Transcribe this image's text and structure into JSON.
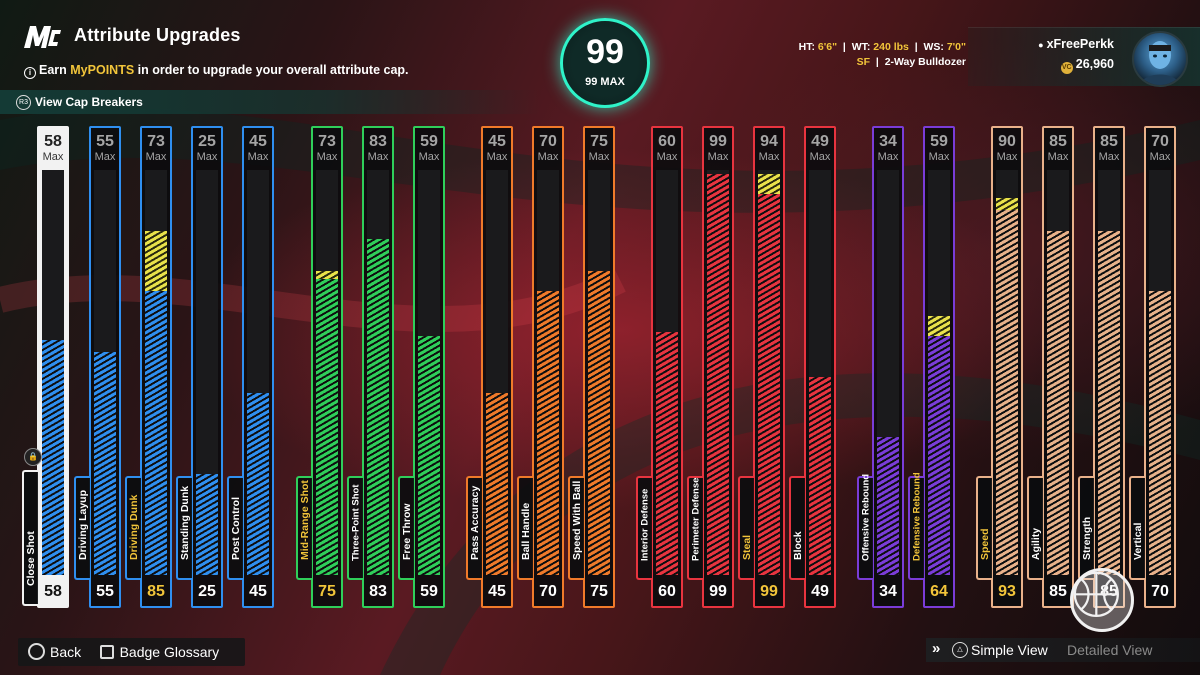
{
  "header": {
    "title": "Attribute Upgrades",
    "earn_prefix": "Earn ",
    "earn_highlight": "MyPOINTS",
    "earn_suffix": " in order to upgrade your overall attribute cap.",
    "cap_breakers_label": "View Cap Breakers"
  },
  "overall": {
    "value": "99",
    "max_label": "99 MAX",
    "ring_color": "#2ff3c9"
  },
  "bio": {
    "ht_label": "HT:",
    "ht_value": "6'6\"",
    "wt_label": "WT:",
    "wt_value": "240 lbs",
    "ws_label": "WS:",
    "ws_value": "7'0\"",
    "position": "SF",
    "archetype": "2-Way Bulldozer"
  },
  "profile": {
    "username": "xFreePerkk",
    "vc": "26,960"
  },
  "colors": {
    "white": "#f2f2f2",
    "blue": "#2f8ff0",
    "green": "#2fcf5a",
    "orange": "#f07a2a",
    "red": "#e8343f",
    "purple": "#7a3cd8",
    "tan": "#e9b18a",
    "boost": "#e9e24a",
    "upgraded_text": "#f2c53a"
  },
  "attributes": [
    {
      "name": "Close Shot",
      "group": "white",
      "max": "58",
      "max_label": "Max",
      "current": "58",
      "current_num": 58,
      "max_num": 58,
      "upgrade_num": 58,
      "upgraded": false
    },
    {
      "name": "Driving Layup",
      "group": "blue",
      "max": "55",
      "max_label": "Max",
      "current": "55",
      "current_num": 55,
      "max_num": 55,
      "upgrade_num": 55,
      "upgraded": false
    },
    {
      "name": "Driving Dunk",
      "group": "blue",
      "max": "73",
      "max_label": "Max",
      "current": "85",
      "current_num": 70,
      "max_num": 73,
      "upgrade_num": 85,
      "upgraded": true
    },
    {
      "name": "Standing Dunk",
      "group": "blue",
      "max": "25",
      "max_label": "Max",
      "current": "25",
      "current_num": 25,
      "max_num": 25,
      "upgrade_num": 25,
      "upgraded": false
    },
    {
      "name": "Post Control",
      "group": "blue",
      "max": "45",
      "max_label": "Max",
      "current": "45",
      "current_num": 45,
      "max_num": 45,
      "upgrade_num": 45,
      "upgraded": false
    },
    {
      "name": "Mid-Range Shot",
      "group": "green",
      "max": "73",
      "max_label": "Max",
      "current": "75",
      "current_num": 73,
      "max_num": 73,
      "upgrade_num": 75,
      "upgraded": true
    },
    {
      "name": "Three-Point Shot",
      "group": "green",
      "max": "83",
      "max_label": "Max",
      "current": "83",
      "current_num": 83,
      "max_num": 83,
      "upgrade_num": 83,
      "upgraded": false
    },
    {
      "name": "Free Throw",
      "group": "green",
      "max": "59",
      "max_label": "Max",
      "current": "59",
      "current_num": 59,
      "max_num": 59,
      "upgrade_num": 59,
      "upgraded": false
    },
    {
      "name": "Pass Accuracy",
      "group": "orange",
      "max": "45",
      "max_label": "Max",
      "current": "45",
      "current_num": 45,
      "max_num": 45,
      "upgrade_num": 45,
      "upgraded": false
    },
    {
      "name": "Ball Handle",
      "group": "orange",
      "max": "70",
      "max_label": "Max",
      "current": "70",
      "current_num": 70,
      "max_num": 70,
      "upgrade_num": 70,
      "upgraded": false
    },
    {
      "name": "Speed With Ball",
      "group": "orange",
      "max": "75",
      "max_label": "Max",
      "current": "75",
      "current_num": 75,
      "max_num": 75,
      "upgrade_num": 75,
      "upgraded": false
    },
    {
      "name": "Interior Defense",
      "group": "red",
      "max": "60",
      "max_label": "Max",
      "current": "60",
      "current_num": 60,
      "max_num": 60,
      "upgrade_num": 60,
      "upgraded": false
    },
    {
      "name": "Perimeter Defense",
      "group": "red",
      "max": "99",
      "max_label": "Max",
      "current": "99",
      "current_num": 99,
      "max_num": 99,
      "upgrade_num": 99,
      "upgraded": false
    },
    {
      "name": "Steal",
      "group": "red",
      "max": "94",
      "max_label": "Max",
      "current": "99",
      "current_num": 94,
      "max_num": 94,
      "upgrade_num": 99,
      "upgraded": true
    },
    {
      "name": "Block",
      "group": "red",
      "max": "49",
      "max_label": "Max",
      "current": "49",
      "current_num": 49,
      "max_num": 49,
      "upgrade_num": 49,
      "upgraded": false
    },
    {
      "name": "Offensive Rebound",
      "group": "purple",
      "max": "34",
      "max_label": "Max",
      "current": "34",
      "current_num": 34,
      "max_num": 34,
      "upgrade_num": 34,
      "upgraded": false
    },
    {
      "name": "Defensive Rebound",
      "group": "purple",
      "max": "59",
      "max_label": "Max",
      "current": "64",
      "current_num": 59,
      "max_num": 59,
      "upgrade_num": 64,
      "upgraded": true
    },
    {
      "name": "Speed",
      "group": "tan",
      "max": "90",
      "max_label": "Max",
      "current": "93",
      "current_num": 90,
      "max_num": 90,
      "upgrade_num": 93,
      "upgraded": true
    },
    {
      "name": "Agility",
      "group": "tan",
      "max": "85",
      "max_label": "Max",
      "current": "85",
      "current_num": 85,
      "max_num": 85,
      "upgrade_num": 85,
      "upgraded": false
    },
    {
      "name": "Strength",
      "group": "tan",
      "max": "85",
      "max_label": "Max",
      "current": "85",
      "current_num": 85,
      "max_num": 85,
      "upgrade_num": 85,
      "upgraded": false
    },
    {
      "name": "Vertical",
      "group": "tan",
      "max": "70",
      "max_label": "Max",
      "current": "70",
      "current_num": 70,
      "max_num": 70,
      "upgrade_num": 70,
      "upgraded": false
    }
  ],
  "footer": {
    "back_label": "Back",
    "glossary_label": "Badge Glossary",
    "simple_view_label": "Simple View",
    "detailed_view_label": "Detailed View"
  }
}
